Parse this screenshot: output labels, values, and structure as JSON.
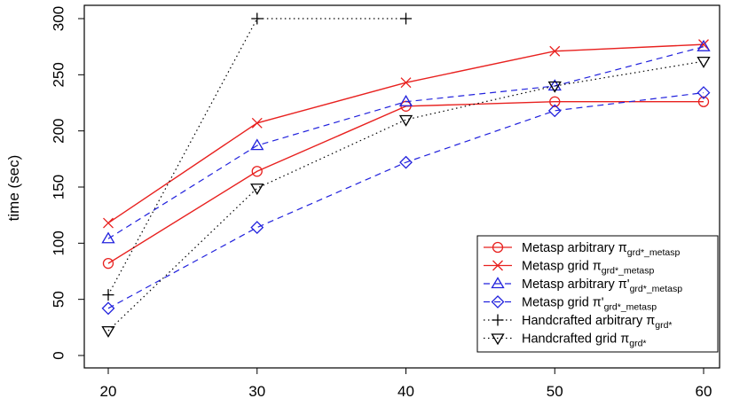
{
  "chart_data": {
    "type": "line",
    "title": "",
    "xlabel": "",
    "ylabel": "time (sec)",
    "x": [
      20,
      30,
      40,
      50,
      60
    ],
    "xticks": [
      20,
      30,
      40,
      50,
      60
    ],
    "yticks": [
      0,
      50,
      100,
      150,
      200,
      250,
      300
    ],
    "xlim": [
      20,
      60
    ],
    "ylim": [
      0,
      300
    ],
    "grid": false,
    "legend_position": "bottom-right",
    "series": [
      {
        "key": "ma",
        "name_main": "Metasp arbitrary π",
        "name_sub": "grd*_metasp",
        "values": [
          82,
          164,
          222,
          226,
          226
        ],
        "color": "#e8211f",
        "dash": "solid",
        "marker": "circle"
      },
      {
        "key": "mg",
        "name_main": "Metasp grid π",
        "name_sub": "grd*_metasp",
        "values": [
          118,
          207,
          243,
          271,
          277
        ],
        "color": "#e8211f",
        "dash": "solid",
        "marker": "x"
      },
      {
        "key": "mpa",
        "name_main": "Metasp arbitrary π'",
        "name_sub": "grd*_metasp",
        "values": [
          104,
          187,
          226,
          240,
          275
        ],
        "color": "#2222dd",
        "dash": "dashed",
        "marker": "triangle-up"
      },
      {
        "key": "mpg",
        "name_main": "Metasp grid π'",
        "name_sub": "grd*_metasp",
        "values": [
          42,
          114,
          172,
          218,
          234
        ],
        "color": "#2222dd",
        "dash": "dashed",
        "marker": "diamond"
      },
      {
        "key": "ha",
        "name_main": "Handcrafted arbitrary π",
        "name_sub": "grd*",
        "values": [
          54,
          300,
          300,
          null,
          null
        ],
        "color": "#000000",
        "dash": "dotted",
        "marker": "plus"
      },
      {
        "key": "hg",
        "name_main": "Handcrafted grid π",
        "name_sub": "grd*",
        "values": [
          22,
          149,
          210,
          240,
          262
        ],
        "color": "#000000",
        "dash": "dotted",
        "marker": "triangle-down"
      }
    ]
  }
}
